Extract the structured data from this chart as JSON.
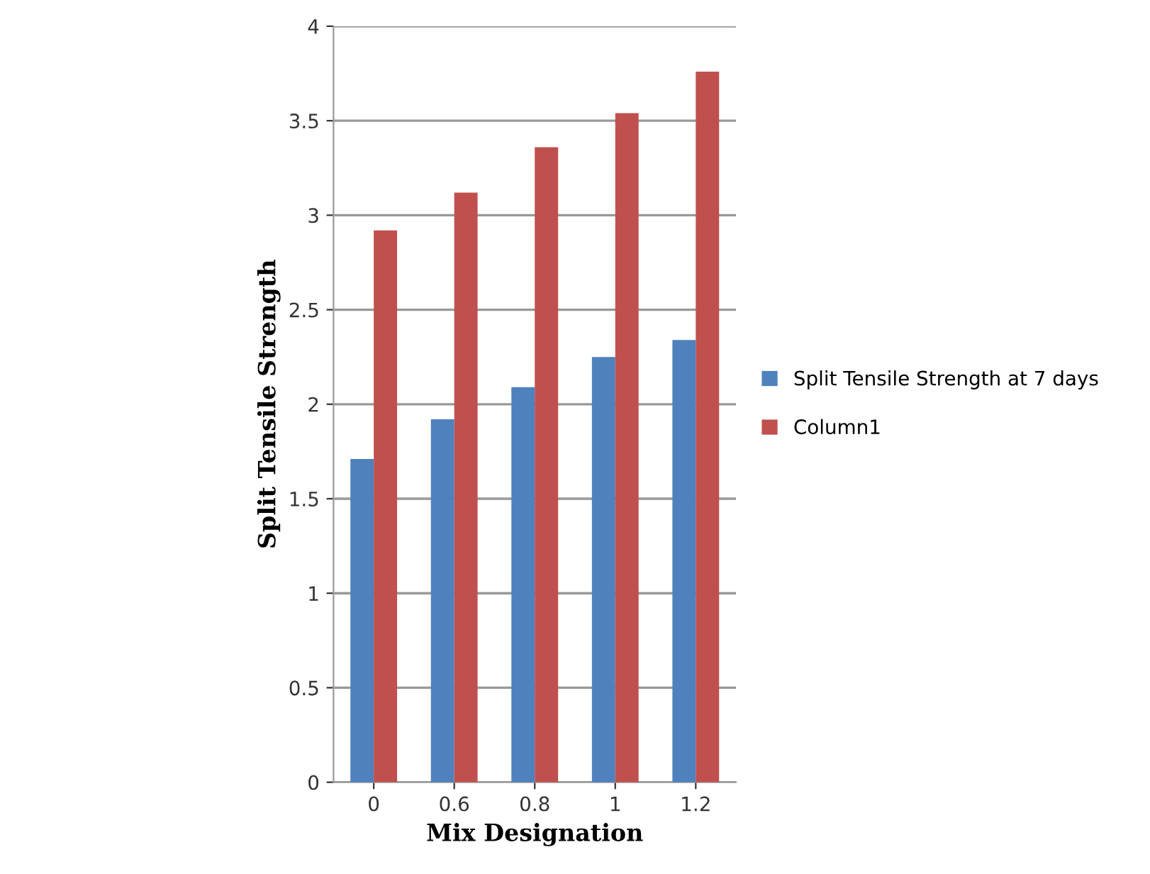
{
  "chart_data": {
    "type": "bar",
    "xlabel": "Mix Designation",
    "ylabel": "Split Tensile Strength",
    "categories": [
      "0",
      "0.6",
      "0.8",
      "1",
      "1.2"
    ],
    "series": [
      {
        "name": "Split Tensile Strength at 7 days",
        "color": "#4f81bd",
        "values": [
          1.71,
          1.92,
          2.09,
          2.25,
          2.34
        ]
      },
      {
        "name": "Column1",
        "color": "#c0504d",
        "values": [
          2.92,
          3.12,
          3.36,
          3.54,
          3.76
        ]
      }
    ],
    "ylim": [
      0,
      4
    ],
    "yticks": [
      0,
      0.5,
      1,
      1.5,
      2,
      2.5,
      3,
      3.5,
      4
    ],
    "grid": "y",
    "legend": "right"
  }
}
